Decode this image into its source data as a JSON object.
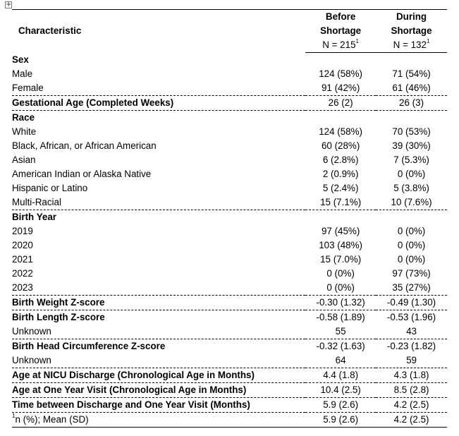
{
  "header": {
    "characteristic": "Characteristic",
    "before_l1": "Before",
    "before_l2": "Shortage",
    "before_n": "N = 215",
    "during_l1": "During",
    "during_l2": "Shortage",
    "during_n": "N = 132",
    "footnote_mark": "1"
  },
  "rows": [
    {
      "label": "Sex",
      "before": "",
      "during": ""
    },
    {
      "label": "Male",
      "before": "124 (58%)",
      "during": "71 (54%)"
    },
    {
      "label": "Female",
      "before": "91 (42%)",
      "during": "61 (46%)"
    },
    {
      "label": "Gestational Age (Completed Weeks)",
      "before": "26 (2)",
      "during": "26 (3)"
    },
    {
      "label": "Race",
      "before": "",
      "during": ""
    },
    {
      "label": "White",
      "before": "124 (58%)",
      "during": "70 (53%)"
    },
    {
      "label": "Black, African, or African American",
      "before": "60 (28%)",
      "during": "39 (30%)"
    },
    {
      "label": "Asian",
      "before": "6 (2.8%)",
      "during": "7 (5.3%)"
    },
    {
      "label": "American Indian or Alaska Native",
      "before": "2 (0.9%)",
      "during": "0 (0%)"
    },
    {
      "label": "Hispanic or Latino",
      "before": "5 (2.4%)",
      "during": "5 (3.8%)"
    },
    {
      "label": "Multi-Racial",
      "before": "15 (7.1%)",
      "during": "10 (7.6%)"
    },
    {
      "label": "Birth Year",
      "before": "",
      "during": ""
    },
    {
      "label": "2019",
      "before": "97 (45%)",
      "during": "0 (0%)"
    },
    {
      "label": "2020",
      "before": "103 (48%)",
      "during": "0 (0%)"
    },
    {
      "label": "2021",
      "before": "15 (7.0%)",
      "during": "0 (0%)"
    },
    {
      "label": "2022",
      "before": "0 (0%)",
      "during": "97 (73%)"
    },
    {
      "label": "2023",
      "before": "0 (0%)",
      "during": "35 (27%)"
    },
    {
      "label": "Birth Weight Z-score",
      "before": "-0.30 (1.32)",
      "during": "-0.49 (1.30)"
    },
    {
      "label": "Birth Length Z-score",
      "before": "-0.58 (1.89)",
      "during": "-0.53 (1.96)"
    },
    {
      "label": "Unknown",
      "before": "55",
      "during": "43"
    },
    {
      "label": "Birth Head Circumference Z-score",
      "before": "-0.32 (1.63)",
      "during": "-0.23 (1.82)"
    },
    {
      "label": "Unknown",
      "before": "64",
      "during": "59"
    },
    {
      "label": "Age at NICU Discharge (Chronological Age in Months)",
      "before": "4.4 (1.8)",
      "during": "4.3 (1.8)"
    },
    {
      "label": "Age at One Year Visit (Chronological Age in Months)",
      "before": "10.4 (2.5)",
      "during": "8.5 (2.8)"
    },
    {
      "label": "Time between Discharge and One Year Visit (Months)",
      "before": "5.9 (2.6)",
      "during": "4.2 (2.5)"
    }
  ],
  "footer": {
    "mark": "1",
    "label": "n (%); Mean (SD)",
    "before": "5.9 (2.6)",
    "during": "4.2 (2.5)"
  }
}
